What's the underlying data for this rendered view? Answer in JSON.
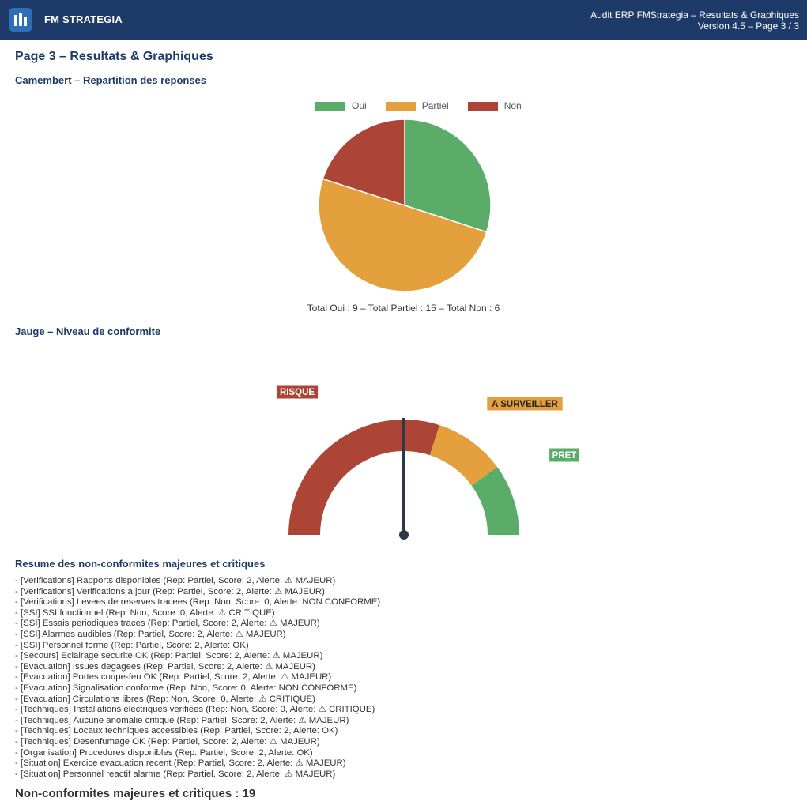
{
  "header": {
    "brand": "FM STRATEGIA",
    "title_line1": "Audit ERP FMStrategia – Resultats & Graphiques",
    "title_line2": "Version 4.5 – Page 3 / 3",
    "logo_icon": "bar-chart-icon"
  },
  "page": {
    "title": "Page 3 – Resultats & Graphiques"
  },
  "pie_section": {
    "title": "Camembert – Repartition des reponses",
    "totals_text": "Total Oui : 9 – Total Partiel : 15 – Total Non : 6"
  },
  "gauge_section": {
    "title": "Jauge – Niveau de conformite"
  },
  "summary_section": {
    "title": "Resume des non-conformites majeures et critiques",
    "items": [
      "- [Verifications] Rapports disponibles (Rep: Partiel, Score: 2, Alerte: ⚠ MAJEUR)",
      "- [Verifications] Verifications a jour (Rep: Partiel, Score: 2, Alerte: ⚠ MAJEUR)",
      "- [Verifications] Levees de reserves tracees (Rep: Non, Score: 0, Alerte: NON CONFORME)",
      "- [SSI] SSI fonctionnel (Rep: Non, Score: 0, Alerte: ⚠ CRITIQUE)",
      "- [SSI] Essais periodiques traces (Rep: Partiel, Score: 2, Alerte: ⚠ MAJEUR)",
      "- [SSI] Alarmes audibles (Rep: Partiel, Score: 2, Alerte: ⚠ MAJEUR)",
      "- [SSI] Personnel forme (Rep: Partiel, Score: 2, Alerte: OK)",
      "- [Secours] Eclairage securite OK (Rep: Partiel, Score: 2, Alerte: ⚠ MAJEUR)",
      "- [Evacuation] Issues degagees (Rep: Partiel, Score: 2, Alerte: ⚠ MAJEUR)",
      "- [Evacuation] Portes coupe-feu OK (Rep: Partiel, Score: 2, Alerte: ⚠ MAJEUR)",
      "- [Evacuation] Signalisation conforme (Rep: Non, Score: 0, Alerte: NON CONFORME)",
      "- [Evacuation] Circulations libres (Rep: Non, Score: 0, Alerte: ⚠ CRITIQUE)",
      "- [Techniques] Installations electriques verifiees (Rep: Non, Score: 0, Alerte: ⚠ CRITIQUE)",
      "- [Techniques] Aucune anomalie critique (Rep: Partiel, Score: 2, Alerte: ⚠ MAJEUR)",
      "- [Techniques] Locaux techniques accessibles (Rep: Partiel, Score: 2, Alerte: OK)",
      "- [Techniques] Desenfumage OK (Rep: Partiel, Score: 2, Alerte: ⚠ MAJEUR)",
      "- [Organisation] Procedures disponibles (Rep: Partiel, Score: 2, Alerte: OK)",
      "- [Situation] Exercice evacuation recent (Rep: Partiel, Score: 2, Alerte: ⚠ MAJEUR)",
      "- [Situation] Personnel reactif alarme (Rep: Partiel, Score: 2, Alerte: ⚠ MAJEUR)"
    ],
    "count_text": "Non-conformites majeures et critiques : 19"
  },
  "colors": {
    "header_bg": "#1d3a68",
    "oui": "#5aac68",
    "partiel": "#e5a03e",
    "non": "#ad4536",
    "needle": "#2d3748"
  },
  "chart_data": [
    {
      "type": "pie",
      "title": "",
      "legend_position": "top",
      "categories": [
        "Oui",
        "Partiel",
        "Non"
      ],
      "values": [
        9,
        15,
        6
      ],
      "colors": [
        "#5aac68",
        "#e5a03e",
        "#ad4536"
      ]
    },
    {
      "type": "gauge",
      "title": "",
      "range": [
        0,
        100
      ],
      "segments": [
        {
          "label": "RISQUE",
          "from": 0,
          "to": 60,
          "color": "#ad4536"
        },
        {
          "label": "A SURVEILLER",
          "from": 60,
          "to": 80,
          "color": "#e5a03e"
        },
        {
          "label": "PRET",
          "from": 80,
          "to": 100,
          "color": "#5aac68"
        }
      ],
      "value": 50
    }
  ]
}
